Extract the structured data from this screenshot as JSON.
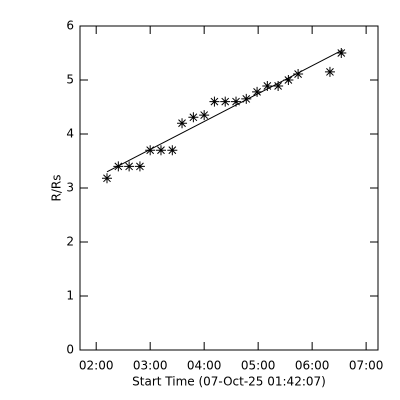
{
  "chart_data": {
    "type": "scatter",
    "xlabel": "Start Time (07-Oct-25 01:42:07)",
    "ylabel": "R/Rs",
    "xlim": [
      1.7,
      7.22
    ],
    "ylim": [
      0,
      6
    ],
    "xticks": [
      {
        "value": 2,
        "label": "02:00"
      },
      {
        "value": 3,
        "label": "03:00"
      },
      {
        "value": 4,
        "label": "04:00"
      },
      {
        "value": 5,
        "label": "05:00"
      },
      {
        "value": 6,
        "label": "06:00"
      },
      {
        "value": 7,
        "label": "07:00"
      }
    ],
    "yticks": [
      0,
      1,
      2,
      3,
      4,
      5,
      6
    ],
    "color": "#000000",
    "series": [
      {
        "marker": "asterisk",
        "x": [
          2.2,
          2.41,
          2.61,
          2.81,
          3.0,
          3.2,
          3.41,
          3.59,
          3.8,
          4.0,
          4.19,
          4.39,
          4.59,
          4.78,
          4.98,
          5.17,
          5.37,
          5.56,
          5.74,
          6.33,
          6.54
        ],
        "values": [
          3.18,
          3.4,
          3.4,
          3.4,
          3.7,
          3.7,
          3.7,
          4.2,
          4.31,
          4.35,
          4.6,
          4.6,
          4.6,
          4.65,
          4.78,
          4.89,
          4.89,
          5.0,
          5.11,
          5.15,
          5.5
        ]
      },
      {
        "marker": "line",
        "x": [
          2.2,
          6.57
        ],
        "values": [
          3.3,
          5.56
        ]
      }
    ]
  }
}
